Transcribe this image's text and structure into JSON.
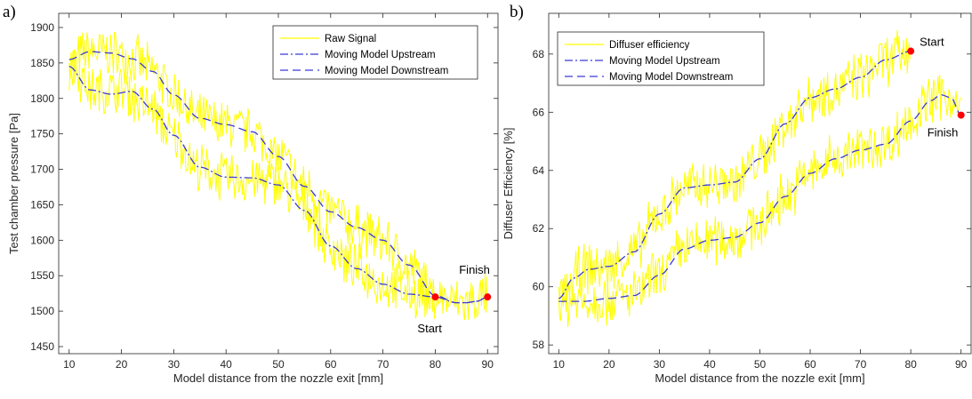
{
  "chart_data": [
    {
      "type": "line",
      "panel_label": "a)",
      "xlabel": "Model distance from the nozzle exit [mm]",
      "ylabel": "Test chamber pressure [Pa]",
      "xlim": [
        8,
        92
      ],
      "ylim": [
        1440,
        1920
      ],
      "xticks": [
        10,
        20,
        30,
        40,
        50,
        60,
        70,
        80,
        90
      ],
      "yticks": [
        1450,
        1500,
        1550,
        1600,
        1650,
        1700,
        1750,
        1800,
        1850,
        1900
      ],
      "legend_position": "top-right",
      "series": [
        {
          "name": "Raw Signal",
          "style": "solid",
          "color": "#ffff00",
          "noise_amplitude": 40,
          "traces": [
            {
              "x": [
                10,
                14,
                18,
                22,
                26,
                30,
                35,
                40,
                45,
                50,
                55,
                60,
                65,
                70,
                75,
                80
              ],
              "y": [
                1850,
                1866,
                1864,
                1856,
                1838,
                1805,
                1770,
                1762,
                1752,
                1718,
                1676,
                1640,
                1618,
                1598,
                1562,
                1522
              ]
            },
            {
              "x": [
                10,
                15,
                20,
                25,
                30,
                35,
                40,
                45,
                50,
                55,
                60,
                65,
                70,
                75,
                80,
                84,
                86,
                88,
                90
              ],
              "y": [
                1845,
                1810,
                1810,
                1790,
                1745,
                1700,
                1688,
                1685,
                1680,
                1650,
                1590,
                1558,
                1538,
                1525,
                1520,
                1512,
                1512,
                1515,
                1520
              ]
            }
          ]
        },
        {
          "name": "Moving Model Upstream",
          "style": "dashdot",
          "color": "#3b3bd6",
          "x": [
            10,
            14,
            18,
            22,
            26,
            30,
            35,
            40,
            45,
            50,
            55,
            60,
            65,
            70,
            75,
            80,
            84,
            86,
            88,
            90
          ],
          "y": [
            1845,
            1812,
            1806,
            1810,
            1785,
            1748,
            1703,
            1689,
            1688,
            1678,
            1642,
            1592,
            1560,
            1538,
            1524,
            1520,
            1512,
            1512,
            1514,
            1520
          ]
        },
        {
          "name": "Moving Model Downstream",
          "style": "dashed",
          "color": "#3b3bd6",
          "x": [
            10,
            14,
            18,
            22,
            26,
            30,
            35,
            40,
            45,
            50,
            55,
            60,
            65,
            70,
            75,
            80,
            84,
            86,
            88,
            90
          ],
          "y": [
            1855,
            1866,
            1864,
            1856,
            1838,
            1805,
            1772,
            1763,
            1753,
            1718,
            1676,
            1640,
            1618,
            1600,
            1565,
            1522,
            1512,
            1512,
            1514,
            1520
          ]
        }
      ],
      "markers": [
        {
          "label": "Start",
          "x": 80,
          "y": 1520,
          "color": "#ff0000"
        },
        {
          "label": "Finish",
          "x": 90,
          "y": 1520,
          "color": "#ff0000"
        }
      ]
    },
    {
      "type": "line",
      "panel_label": "b)",
      "xlabel": "Model distance from the nozzle exit [mm]",
      "ylabel": "Diffuser Efficiency [%]",
      "xlim": [
        8,
        92
      ],
      "ylim": [
        57.7,
        69.4
      ],
      "xticks": [
        10,
        20,
        30,
        40,
        50,
        60,
        70,
        80,
        90
      ],
      "yticks": [
        58,
        60,
        62,
        64,
        66,
        68
      ],
      "legend_position": "top-left",
      "series": [
        {
          "name": "Diffuser efficiency",
          "style": "solid",
          "color": "#ffff00",
          "noise_amplitude": 1.0,
          "traces": [
            {
              "x": [
                10,
                15,
                20,
                25,
                30,
                35,
                40,
                45,
                50,
                55,
                60,
                65,
                70,
                75,
                80
              ],
              "y": [
                59.6,
                60.6,
                60.7,
                61.2,
                62.5,
                63.4,
                63.5,
                63.6,
                64.4,
                65.6,
                66.5,
                66.8,
                67.2,
                67.8,
                68.1
              ]
            },
            {
              "x": [
                10,
                15,
                20,
                25,
                30,
                35,
                40,
                45,
                50,
                55,
                60,
                65,
                70,
                75,
                80,
                84,
                86,
                88,
                90
              ],
              "y": [
                59.5,
                59.5,
                59.6,
                59.7,
                60.4,
                61.3,
                61.6,
                61.7,
                62.2,
                63.1,
                63.9,
                64.4,
                64.7,
                64.9,
                65.7,
                66.4,
                66.6,
                66.5,
                65.9
              ]
            }
          ]
        },
        {
          "name": "Moving Model Upstream",
          "style": "dashdot",
          "color": "#3b3bd6",
          "x": [
            10,
            13,
            16,
            20,
            25,
            30,
            35,
            40,
            45,
            50,
            55,
            60,
            65,
            70,
            75,
            80
          ],
          "y": [
            59.6,
            60.3,
            60.6,
            60.7,
            61.2,
            62.5,
            63.4,
            63.5,
            63.6,
            64.4,
            65.6,
            66.5,
            66.8,
            67.2,
            67.8,
            68.1
          ]
        },
        {
          "name": "Moving Model Downstream",
          "style": "dashed",
          "color": "#3b3bd6",
          "x": [
            10,
            15,
            20,
            25,
            30,
            35,
            40,
            45,
            50,
            55,
            60,
            65,
            70,
            75,
            80,
            84,
            86,
            88,
            90
          ],
          "y": [
            59.5,
            59.5,
            59.6,
            59.7,
            60.4,
            61.3,
            61.6,
            61.7,
            62.2,
            63.1,
            63.9,
            64.4,
            64.7,
            64.9,
            65.7,
            66.4,
            66.6,
            66.5,
            65.9
          ]
        }
      ],
      "markers": [
        {
          "label": "Start",
          "x": 80,
          "y": 68.1,
          "color": "#ff0000"
        },
        {
          "label": "Finish",
          "x": 90,
          "y": 65.9,
          "color": "#ff0000"
        }
      ]
    }
  ]
}
